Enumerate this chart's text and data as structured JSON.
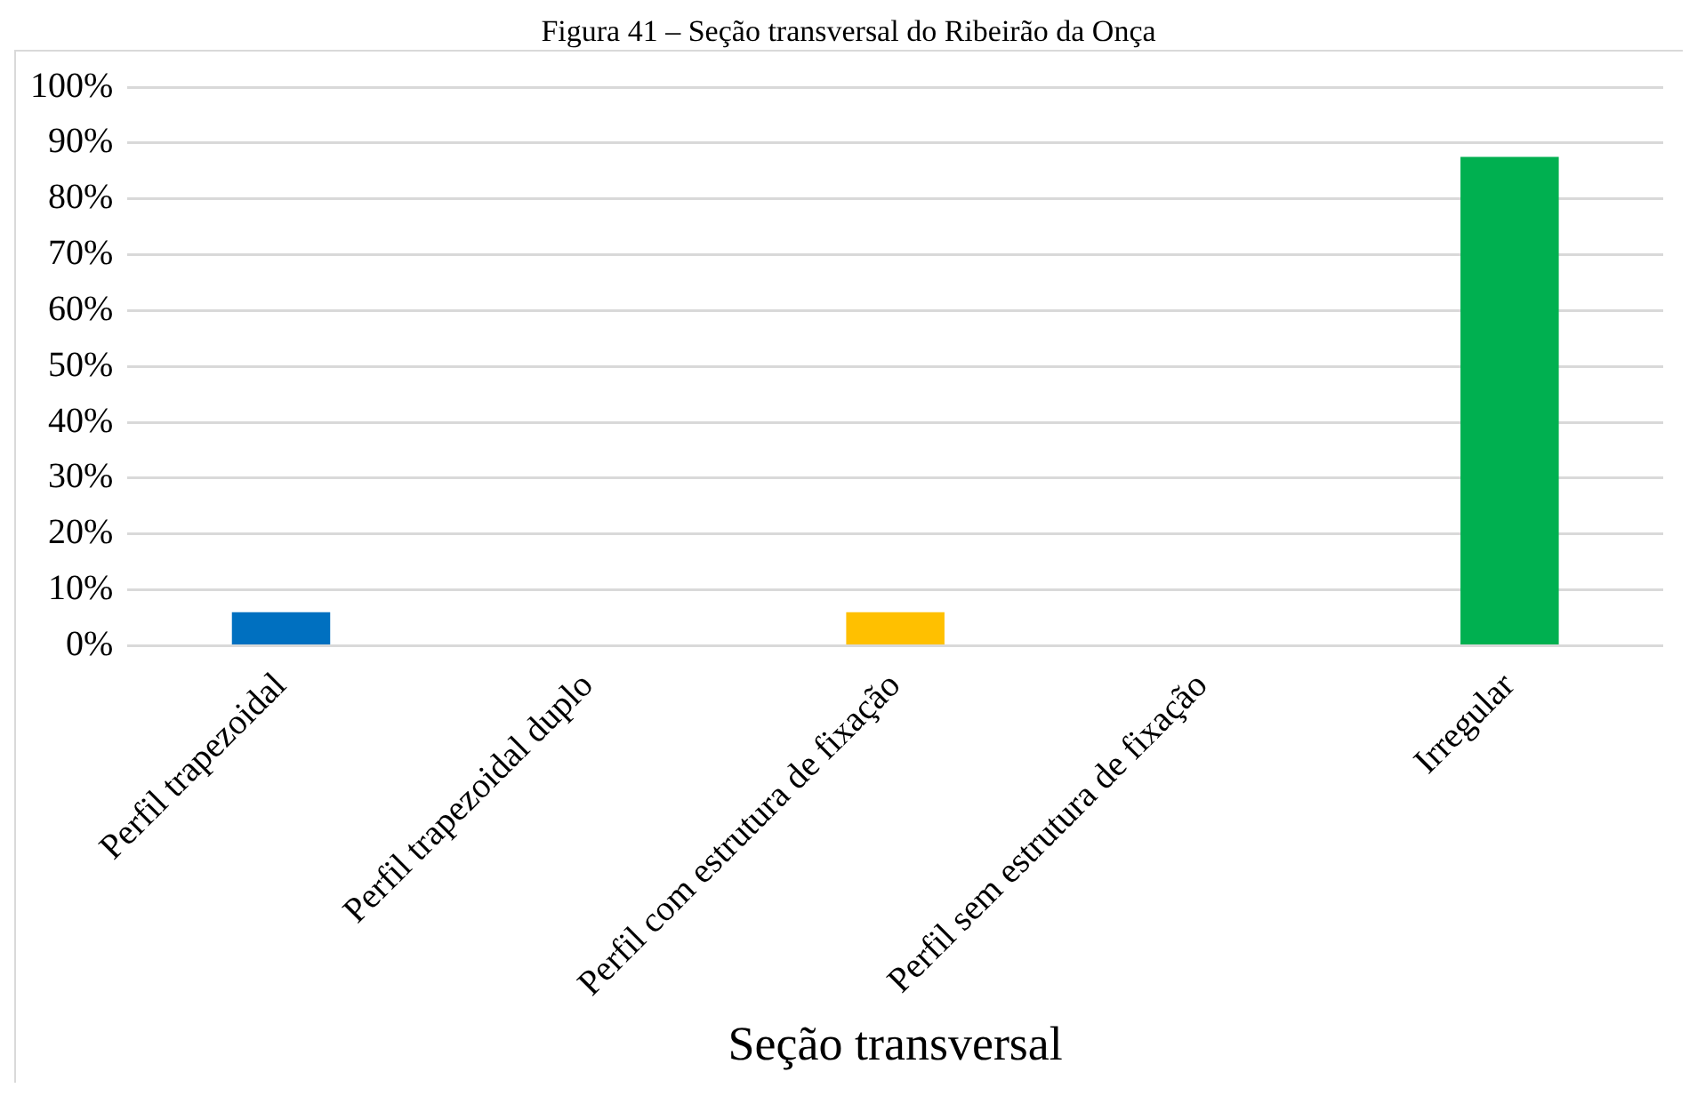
{
  "chart_data": {
    "type": "bar",
    "title": "Figura 41 – Seção transversal do Ribeirão da Onça",
    "xlabel": "Seção transversal",
    "categories": [
      "Perfil trapezoidal",
      "Perfil trapezoidal duplo",
      "Perfil com estrutura de fixação",
      "Perfil sem estrutura de fixação",
      "Irregular"
    ],
    "values": [
      6,
      0,
      6,
      0,
      87.5
    ],
    "colors": [
      "#0070c0",
      "#ed7d31",
      "#ffc000",
      "#a5a5a5",
      "#00b050"
    ],
    "ylim": [
      0,
      100
    ],
    "yticks": [
      {
        "value": 0,
        "label": "0%"
      },
      {
        "value": 10,
        "label": "10%"
      },
      {
        "value": 20,
        "label": "20%"
      },
      {
        "value": 30,
        "label": "30%"
      },
      {
        "value": 40,
        "label": "40%"
      },
      {
        "value": 50,
        "label": "50%"
      },
      {
        "value": 60,
        "label": "60%"
      },
      {
        "value": 70,
        "label": "70%"
      },
      {
        "value": 80,
        "label": "80%"
      },
      {
        "value": 90,
        "label": "90%"
      },
      {
        "value": 100,
        "label": "100%"
      }
    ],
    "grid": "y",
    "legend": false
  }
}
